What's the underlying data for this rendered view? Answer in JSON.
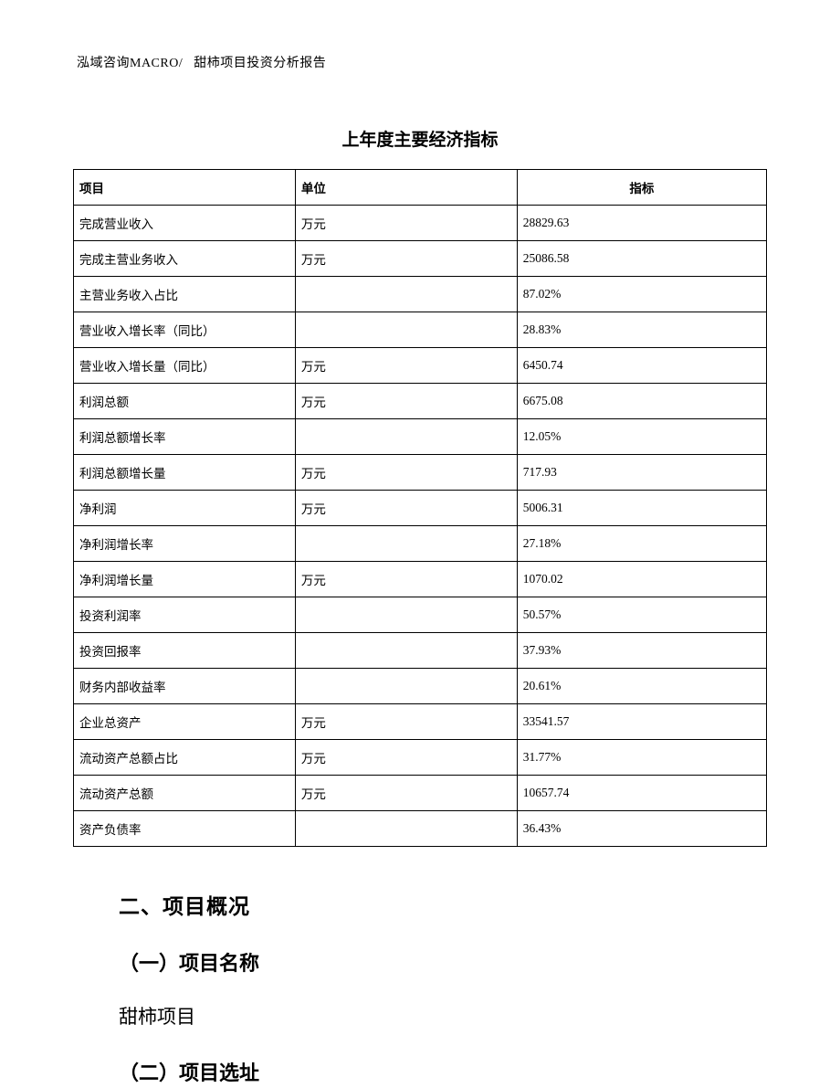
{
  "header": {
    "company": "泓域咨询MACRO/",
    "doc_title": "甜柿项目投资分析报告"
  },
  "table": {
    "title": "上年度主要经济指标",
    "columns": [
      "项目",
      "单位",
      "指标"
    ],
    "rows": [
      [
        "完成营业收入",
        "万元",
        "28829.63"
      ],
      [
        "完成主营业务收入",
        "万元",
        "25086.58"
      ],
      [
        "主营业务收入占比",
        "",
        "87.02%"
      ],
      [
        "营业收入增长率（同比）",
        "",
        "28.83%"
      ],
      [
        "营业收入增长量（同比）",
        "万元",
        "6450.74"
      ],
      [
        "利润总额",
        "万元",
        "6675.08"
      ],
      [
        "利润总额增长率",
        "",
        "12.05%"
      ],
      [
        "利润总额增长量",
        "万元",
        "717.93"
      ],
      [
        "净利润",
        "万元",
        "5006.31"
      ],
      [
        "净利润增长率",
        "",
        "27.18%"
      ],
      [
        "净利润增长量",
        "万元",
        "1070.02"
      ],
      [
        "投资利润率",
        "",
        "50.57%"
      ],
      [
        "投资回报率",
        "",
        "37.93%"
      ],
      [
        "财务内部收益率",
        "",
        "20.61%"
      ],
      [
        "企业总资产",
        "万元",
        "33541.57"
      ],
      [
        "流动资产总额占比",
        "万元",
        "31.77%"
      ],
      [
        "流动资产总额",
        "万元",
        "10657.74"
      ],
      [
        "资产负债率",
        "",
        "36.43%"
      ]
    ]
  },
  "sections": {
    "h2": "二、项目概况",
    "sub1": "（一）项目名称",
    "body1": "甜柿项目",
    "sub2": "（二）项目选址"
  }
}
